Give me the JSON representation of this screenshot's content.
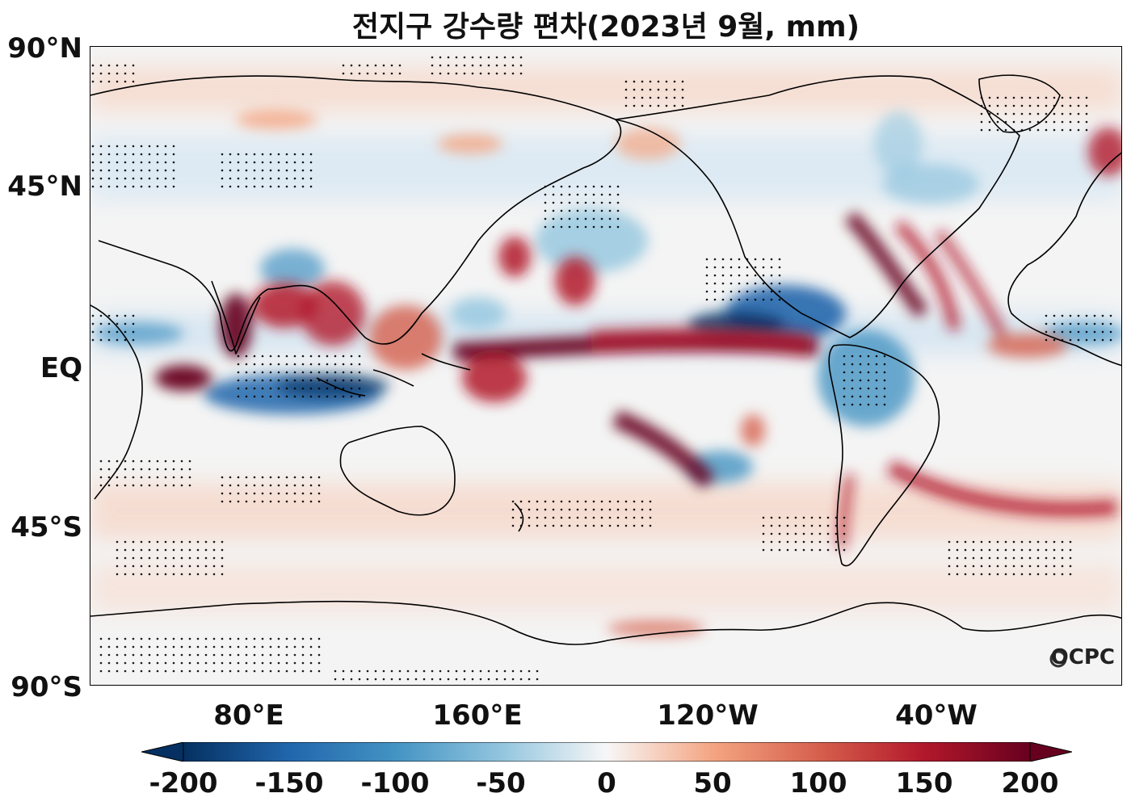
{
  "title": "전지구 강수량 편차(2023년 9월, mm)",
  "lat_labels": [
    "90°N",
    "45°N",
    "EQ",
    "45°S",
    "90°S"
  ],
  "lon_labels": [
    "80°E",
    "160°E",
    "120°W",
    "40°W"
  ],
  "colorbar": {
    "ticks": [
      "-200",
      "-150",
      "-100",
      "-50",
      "0",
      "50",
      "100",
      "150",
      "200"
    ],
    "colormap": "RdBu_r",
    "min": -200,
    "max": 200,
    "extend": "both"
  },
  "logo": "OCPC",
  "colors": {
    "strong_positive": "#67001f",
    "positive": "#d6604d",
    "neutral": "#f7f7f7",
    "negative": "#4393c3",
    "strong_negative": "#053061"
  }
}
